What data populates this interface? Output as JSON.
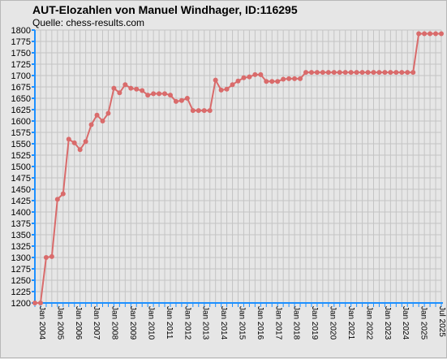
{
  "chart_data": {
    "type": "line",
    "title": "AUT-Elozahlen von Manuel Windhager, ID:116295",
    "subtitle": "Quelle: chess-results.com",
    "ylim": [
      1200,
      1800
    ],
    "y_ticks": [
      1200,
      1225,
      1250,
      1275,
      1300,
      1325,
      1350,
      1375,
      1400,
      1425,
      1450,
      1475,
      1500,
      1525,
      1550,
      1575,
      1600,
      1625,
      1650,
      1675,
      1700,
      1725,
      1750,
      1775,
      1800
    ],
    "x_tick_labels": [
      "Jan 2004",
      "Jan 2005",
      "Jan 2006",
      "Jan 2007",
      "Jan 2008",
      "Jan 2009",
      "Jan 2010",
      "Jan 2011",
      "Jan 2012",
      "Jan 2013",
      "Jan 2014",
      "Jan 2015",
      "Jan 2016",
      "Jan 2017",
      "Jan 2018",
      "Jan 2019",
      "Jan 2020",
      "Jan 2021",
      "Jan 2022",
      "Jan 2023",
      "Jan 2024",
      "Jan 2025",
      "Jul 2025"
    ],
    "grid": true,
    "line_color": "#d96b6b",
    "axis_color": "#1e90ff",
    "series": [
      {
        "values": [
          1200,
          1200,
          1300,
          1302,
          1428,
          1440,
          1560,
          1552,
          1537,
          1555,
          1592,
          1613,
          1600,
          1617,
          1672,
          1662,
          1680,
          1672,
          1670,
          1667,
          1657,
          1660,
          1660,
          1660,
          1657,
          1643,
          1645,
          1650,
          1623,
          1623,
          1623,
          1623,
          1690,
          1668,
          1670,
          1680,
          1688,
          1695,
          1697,
          1702,
          1702,
          1687,
          1687,
          1687,
          1692,
          1693,
          1693,
          1693,
          1707,
          1707,
          1707,
          1707,
          1707,
          1707,
          1707,
          1707,
          1707,
          1707,
          1707,
          1707,
          1707,
          1707,
          1707,
          1707,
          1707,
          1707,
          1707,
          1707,
          1792,
          1792,
          1792,
          1792,
          1792
        ]
      }
    ]
  }
}
